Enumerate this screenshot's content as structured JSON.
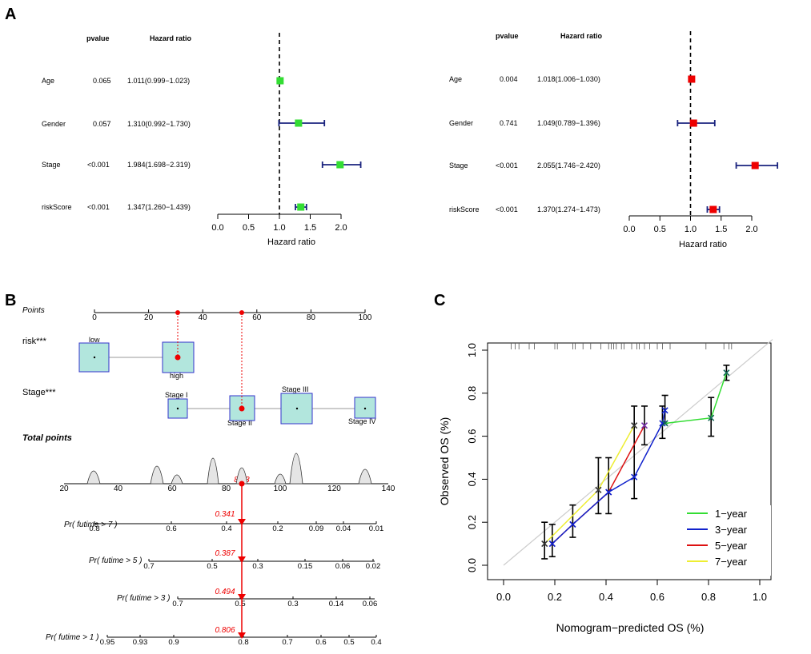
{
  "panel_labels": {
    "a": "A",
    "b": "B",
    "c": "C"
  },
  "colors": {
    "green": "#33dd33",
    "red": "#ee0000",
    "navy": "#1a237e",
    "teal_box": "#b2e6dd",
    "box_border": "#3333cc",
    "one_year": "#33dd33",
    "three_year": "#1122cc",
    "five_year": "#dd1111",
    "seven_year": "#eeee33"
  },
  "chart_data": [
    {
      "type": "forest",
      "name": "univariate",
      "columns": {
        "pvalue": "pvalue",
        "hr": "Hazard ratio"
      },
      "xlabel": "Hazard ratio",
      "ticks": [
        "0.0",
        "0.5",
        "1.0",
        "1.5",
        "2.0"
      ],
      "xlim": [
        0,
        2.0
      ],
      "ref_line": 1.0,
      "rows": [
        {
          "label": "Age",
          "pvalue": "0.065",
          "hr_text": "1.011(0.999−1.023)",
          "hr": 1.011,
          "lo": 0.999,
          "hi": 1.023
        },
        {
          "label": "Gender",
          "pvalue": "0.057",
          "hr_text": "1.310(0.992−1.730)",
          "hr": 1.31,
          "lo": 0.992,
          "hi": 1.73
        },
        {
          "label": "Stage",
          "pvalue": "<0.001",
          "hr_text": "1.984(1.698−2.319)",
          "hr": 1.984,
          "lo": 1.698,
          "hi": 2.319
        },
        {
          "label": "riskScore",
          "pvalue": "<0.001",
          "hr_text": "1.347(1.260−1.439)",
          "hr": 1.347,
          "lo": 1.26,
          "hi": 1.439
        }
      ]
    },
    {
      "type": "forest",
      "name": "multivariate",
      "columns": {
        "pvalue": "pvalue",
        "hr": "Hazard ratio"
      },
      "xlabel": "Hazard ratio",
      "ticks": [
        "0.0",
        "0.5",
        "1.0",
        "1.5",
        "2.0"
      ],
      "xlim": [
        0,
        2.0
      ],
      "ref_line": 1.0,
      "rows": [
        {
          "label": "Age",
          "pvalue": "0.004",
          "hr_text": "1.018(1.006−1.030)",
          "hr": 1.018,
          "lo": 1.006,
          "hi": 1.03
        },
        {
          "label": "Gender",
          "pvalue": "0.741",
          "hr_text": "1.049(0.789−1.396)",
          "hr": 1.049,
          "lo": 0.789,
          "hi": 1.396
        },
        {
          "label": "Stage",
          "pvalue": "<0.001",
          "hr_text": "2.055(1.746−2.420)",
          "hr": 2.055,
          "lo": 1.746,
          "hi": 2.42
        },
        {
          "label": "riskScore",
          "pvalue": "<0.001",
          "hr_text": "1.370(1.274−1.473)",
          "hr": 1.37,
          "lo": 1.274,
          "hi": 1.473
        }
      ]
    },
    {
      "type": "nomogram",
      "points_label": "Points",
      "points_ticks": [
        "0",
        "20",
        "40",
        "60",
        "80",
        "100"
      ],
      "variables": [
        {
          "label": "risk***",
          "levels": [
            "low",
            "high"
          ],
          "points": [
            0,
            31
          ],
          "selected": "high"
        },
        {
          "label": "Stage***",
          "levels": [
            "Stage I",
            "Stage II",
            "Stage III",
            "Stage IV"
          ],
          "points": [
            31,
            54,
            75,
            100
          ],
          "selected": "Stage II"
        }
      ],
      "selected_points": [
        31,
        54
      ],
      "total_label": "Total points",
      "total_ticks": [
        "20",
        "40",
        "60",
        "80",
        "100",
        "120",
        "140"
      ],
      "total_value": "85.3",
      "predictions": [
        {
          "label": "Pr( futime > 7 )",
          "ticks": [
            "0.8",
            "0.6",
            "0.4",
            "0.2",
            "0.09",
            "0.04",
            "0.01"
          ],
          "value": "0.341"
        },
        {
          "label": "Pr( futime > 5 )",
          "ticks": [
            "0.7",
            "0.5",
            "0.3",
            "0.15",
            "0.06",
            "0.02"
          ],
          "value": "0.387"
        },
        {
          "label": "Pr( futime > 3 )",
          "ticks": [
            "0.7",
            "0.5",
            "0.3",
            "0.14",
            "0.06"
          ],
          "value": "0.494"
        },
        {
          "label": "Pr( futime > 1 )",
          "ticks": [
            "0.95",
            "0.93",
            "0.9",
            "0.8",
            "0.7",
            "0.6",
            "0.5",
            "0.4"
          ],
          "value": "0.806"
        }
      ]
    },
    {
      "type": "line",
      "name": "calibration",
      "xlabel": "Nomogram−predicted OS (%)",
      "ylabel": "Observed OS (%)",
      "xlim": [
        0,
        1.0
      ],
      "ylim": [
        0,
        1.0
      ],
      "xticks": [
        "0.0",
        "0.2",
        "0.4",
        "0.6",
        "0.8",
        "1.0"
      ],
      "yticks": [
        "0.0",
        "0.2",
        "0.4",
        "0.6",
        "0.8",
        "1.0"
      ],
      "legend_position": "bottom-right",
      "series": [
        {
          "name": "1−year",
          "x": [
            0.63,
            0.81,
            0.87
          ],
          "y": [
            0.66,
            0.685,
            0.895
          ]
        },
        {
          "name": "3−year",
          "x": [
            0.19,
            0.27,
            0.41,
            0.51,
            0.62,
            0.63
          ],
          "y": [
            0.1,
            0.19,
            0.34,
            0.41,
            0.66,
            0.72
          ]
        },
        {
          "name": "5−year",
          "x": [
            0.19,
            0.27,
            0.41,
            0.55
          ],
          "y": [
            0.1,
            0.19,
            0.34,
            0.65
          ]
        },
        {
          "name": "7−year",
          "x": [
            0.16,
            0.37,
            0.51
          ],
          "y": [
            0.1,
            0.35,
            0.65
          ]
        }
      ],
      "errorbars": [
        {
          "x": 0.16,
          "lo": 0.03,
          "hi": 0.2
        },
        {
          "x": 0.19,
          "lo": 0.04,
          "hi": 0.19
        },
        {
          "x": 0.27,
          "lo": 0.13,
          "hi": 0.28
        },
        {
          "x": 0.37,
          "lo": 0.24,
          "hi": 0.5
        },
        {
          "x": 0.41,
          "lo": 0.24,
          "hi": 0.5
        },
        {
          "x": 0.51,
          "lo": 0.31,
          "hi": 0.74
        },
        {
          "x": 0.55,
          "lo": 0.56,
          "hi": 0.74
        },
        {
          "x": 0.62,
          "lo": 0.59,
          "hi": 0.74
        },
        {
          "x": 0.63,
          "lo": 0.66,
          "hi": 0.79
        },
        {
          "x": 0.81,
          "lo": 0.6,
          "hi": 0.78
        },
        {
          "x": 0.87,
          "lo": 0.86,
          "hi": 0.93
        }
      ],
      "rug_x": [
        0.03,
        0.045,
        0.06,
        0.1,
        0.12,
        0.2,
        0.21,
        0.27,
        0.28,
        0.31,
        0.34,
        0.38,
        0.41,
        0.42,
        0.43,
        0.44,
        0.46,
        0.47,
        0.5,
        0.52,
        0.53,
        0.55,
        0.57,
        0.6,
        0.62,
        0.65,
        0.79,
        0.86,
        0.88,
        0.89
      ]
    }
  ]
}
